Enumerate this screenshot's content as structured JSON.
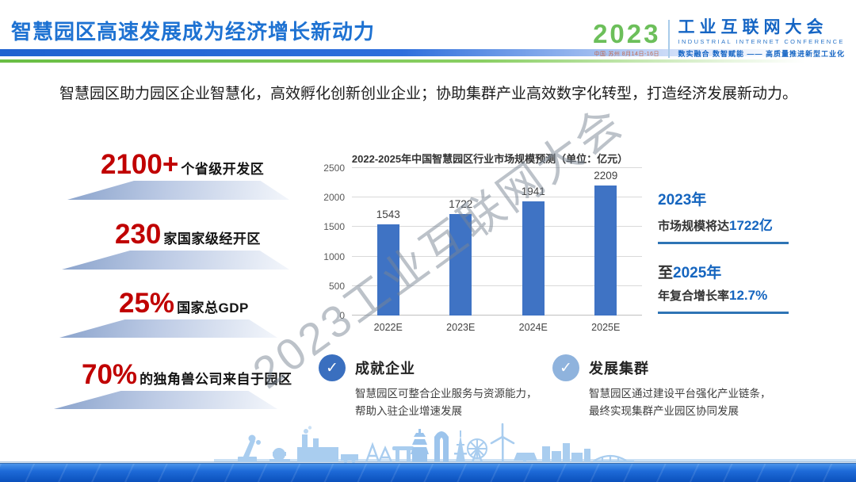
{
  "header": {
    "title": "智慧园区高速发展成为经济增长新动力",
    "logo": {
      "year": "2023",
      "venue": "中国·苏州  8月14日-16日",
      "name_cn": "工业互联网大会",
      "name_en": "INDUSTRIAL INTERNET CONFERENCE",
      "tagline": "数实融合  数智赋能 —— 高质量推进新型工业化"
    }
  },
  "intro": "智慧园区助力园区企业智慧化，高效孵化创新创业企业；协助集群产业高效数字化转型，打造经济发展新动力。",
  "stats": [
    {
      "value": "2100+",
      "label": "个省级开发区"
    },
    {
      "value": "230",
      "label": "家国家级经开区"
    },
    {
      "value": "25%",
      "label": "国家总GDP"
    },
    {
      "value": "70%",
      "label": "的独角兽公司来自于园区"
    }
  ],
  "chart_data": {
    "type": "bar",
    "title": "2022-2025年中国智慧园区行业市场规模预测（单位：亿元）",
    "categories": [
      "2022E",
      "2023E",
      "2024E",
      "2025E"
    ],
    "values": [
      1543,
      1722,
      1941,
      2209
    ],
    "xlabel": "",
    "ylabel": "",
    "ylim": [
      0,
      2500
    ],
    "yticks": [
      0,
      500,
      1000,
      1500,
      2000,
      2500
    ],
    "grid": true,
    "legend": "none",
    "bar_color": "#3F73C4"
  },
  "callouts": [
    {
      "title_prefix": "",
      "title_highlight": "2023年",
      "body_prefix": "市场规模将达",
      "body_highlight": "1722亿"
    },
    {
      "title_prefix": "至",
      "title_highlight": "2025年",
      "body_prefix": "年复合增长率",
      "body_highlight": "12.7%"
    }
  ],
  "features": [
    {
      "title": "成就企业",
      "lines": [
        "智慧园区可整合企业服务与资源能力，",
        "帮助入驻企业增速发展"
      ]
    },
    {
      "title": "发展集群",
      "lines": [
        "智慧园区通过建设平台强化产业链条，",
        "最终实现集群产业园区协同发展"
      ]
    }
  ],
  "watermark": "2023工业互联网大会",
  "checkmark_glyph": "✓",
  "colors": {
    "title_blue": "#1E72D2",
    "rule_blue": "#1F62D0",
    "rule_green": "#69BE44",
    "logo_green": "#6CBF5A",
    "logo_blue": "#1565C4",
    "stat_red": "#C00000",
    "bar_blue": "#3F73C4",
    "callout_blue": "#1565BF",
    "callout_rule_blue": "#2E74B5",
    "check_dark_blue": "#3A6FBF",
    "check_light_blue": "#8FB3DD",
    "watermark_gray": "#7A8594",
    "band_blue": "#1E6BD8"
  }
}
